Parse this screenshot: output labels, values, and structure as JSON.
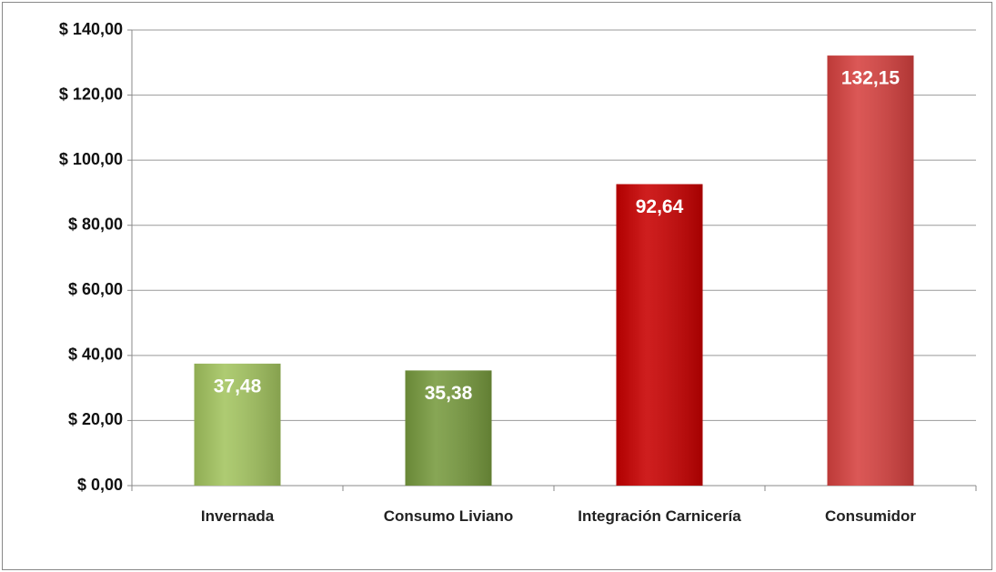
{
  "chart_data": {
    "type": "bar",
    "categories": [
      "Invernada",
      "Consumo Liviano",
      "Integración Carnicería",
      "Consumidor"
    ],
    "values": [
      37.48,
      35.38,
      92.64,
      132.15
    ],
    "value_labels": [
      "37,48",
      "35,38",
      "92,64",
      "132,15"
    ],
    "colors": [
      "#a3c45f",
      "#779a3e",
      "#c80000",
      "#d6413f"
    ],
    "ylim": [
      0,
      140
    ],
    "yticks": [
      {
        "value": 0,
        "label": "$ 0,00"
      },
      {
        "value": 20,
        "label": "$ 20,00"
      },
      {
        "value": 40,
        "label": "$ 40,00"
      },
      {
        "value": 60,
        "label": "$ 60,00"
      },
      {
        "value": 80,
        "label": "$ 80,00"
      },
      {
        "value": 100,
        "label": "$ 100,00"
      },
      {
        "value": 120,
        "label": "$ 120,00"
      },
      {
        "value": 140,
        "label": "$ 140,00"
      }
    ],
    "grid": true
  }
}
